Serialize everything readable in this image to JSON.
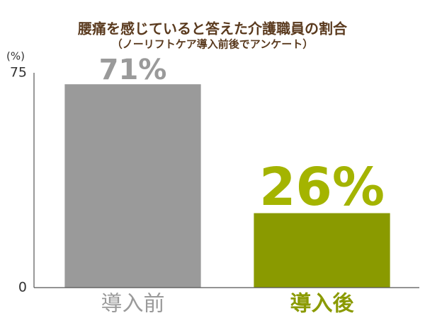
{
  "chart_data": {
    "type": "bar",
    "title": "腰痛を感じていると答えた介護職員の割合",
    "subtitle": "（ノーリフトケア導入前後でアンケート）",
    "y_label": "(%)",
    "categories": [
      "導入前",
      "導入後"
    ],
    "values": [
      71,
      26
    ],
    "value_labels": [
      "71%",
      "26%"
    ],
    "colors": [
      "#9a9a9a",
      "#8a9a00"
    ],
    "ylim": [
      0,
      75
    ],
    "yticks": [
      0,
      75
    ],
    "grid": false
  }
}
